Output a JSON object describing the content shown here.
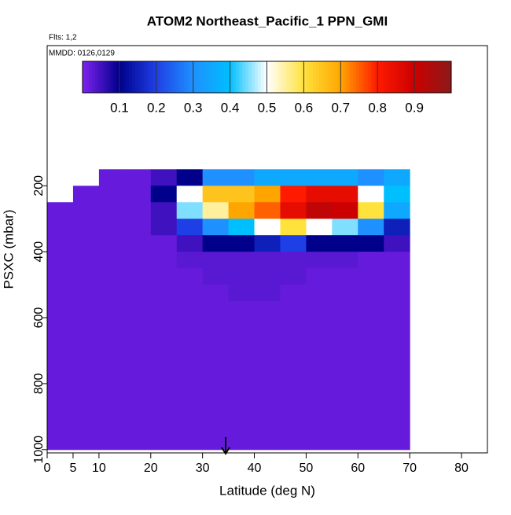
{
  "chart_data": {
    "type": "heatmap",
    "title": "ATOM2 Northeast_Pacific_1 PPN_GMI",
    "flights": "Flts: 1,2",
    "dates": "MMDD: 0126,0129",
    "xlabel": "Latitude (deg N)",
    "ylabel": "PSXC (mbar)",
    "x_edges": [
      0,
      5,
      10,
      15,
      20,
      25,
      30,
      35,
      40,
      45,
      50,
      55,
      60,
      65,
      70,
      75
    ],
    "y_edges": [
      150,
      200,
      250,
      300,
      350,
      400,
      450,
      500,
      550,
      600,
      650,
      700,
      750,
      800,
      850,
      900,
      950,
      1000
    ],
    "values": [
      [
        null,
        null,
        0.02,
        0.02,
        0.05,
        0.1,
        0.3,
        0.3,
        0.35,
        0.35,
        0.35,
        0.35,
        0.3,
        0.35,
        null
      ],
      [
        null,
        0.02,
        0.02,
        0.02,
        0.1,
        0.5,
        0.65,
        0.65,
        0.7,
        0.8,
        0.85,
        0.85,
        0.5,
        0.4,
        null
      ],
      [
        0.02,
        0.02,
        0.02,
        0.02,
        0.05,
        0.45,
        0.55,
        0.7,
        0.75,
        0.85,
        0.92,
        0.9,
        0.6,
        0.35,
        null
      ],
      [
        0.02,
        0.02,
        0.02,
        0.02,
        0.05,
        0.2,
        0.3,
        0.4,
        0.5,
        0.6,
        0.5,
        0.45,
        0.3,
        0.15,
        null
      ],
      [
        0.02,
        0.02,
        0.02,
        0.02,
        0.02,
        0.05,
        0.1,
        0.1,
        0.15,
        0.2,
        0.1,
        0.1,
        0.1,
        0.05,
        null
      ],
      [
        0.02,
        0.02,
        0.02,
        0.02,
        0.02,
        0.03,
        0.03,
        0.03,
        0.03,
        0.03,
        0.03,
        0.03,
        0.02,
        0.02,
        null
      ],
      [
        0.02,
        0.02,
        0.02,
        0.02,
        0.02,
        0.02,
        0.03,
        0.03,
        0.03,
        0.03,
        0.02,
        0.02,
        0.02,
        0.02,
        null
      ],
      [
        0.02,
        0.02,
        0.02,
        0.02,
        0.02,
        0.02,
        0.02,
        0.03,
        0.03,
        0.02,
        0.02,
        0.02,
        0.02,
        0.02,
        null
      ],
      [
        0.02,
        0.02,
        0.02,
        0.02,
        0.02,
        0.02,
        0.02,
        0.02,
        0.02,
        0.02,
        0.02,
        0.02,
        0.02,
        0.02,
        null
      ],
      [
        0.02,
        0.02,
        0.02,
        0.02,
        0.02,
        0.02,
        0.02,
        0.02,
        0.02,
        0.02,
        0.02,
        0.02,
        0.02,
        0.02,
        null
      ],
      [
        0.02,
        0.02,
        0.02,
        0.02,
        0.02,
        0.02,
        0.02,
        0.02,
        0.02,
        0.02,
        0.02,
        0.02,
        0.02,
        0.02,
        null
      ],
      [
        0.02,
        0.02,
        0.02,
        0.02,
        0.02,
        0.02,
        0.02,
        0.02,
        0.02,
        0.02,
        0.02,
        0.02,
        0.02,
        0.02,
        null
      ],
      [
        0.02,
        0.02,
        0.02,
        0.02,
        0.02,
        0.02,
        0.02,
        0.02,
        0.02,
        0.02,
        0.02,
        0.02,
        0.02,
        0.02,
        null
      ],
      [
        0.02,
        0.02,
        0.02,
        0.02,
        0.02,
        0.02,
        0.02,
        0.02,
        0.02,
        0.02,
        0.02,
        0.02,
        0.02,
        0.02,
        null
      ],
      [
        0.02,
        0.02,
        0.02,
        0.02,
        0.02,
        0.02,
        0.02,
        0.02,
        0.02,
        0.02,
        0.02,
        0.02,
        0.02,
        0.02,
        null
      ],
      [
        0.02,
        0.02,
        0.02,
        0.02,
        0.02,
        0.02,
        0.02,
        0.02,
        0.02,
        0.02,
        0.02,
        0.02,
        0.02,
        0.02,
        null
      ],
      [
        0.02,
        0.02,
        0.02,
        0.02,
        0.02,
        0.02,
        0.02,
        0.02,
        0.02,
        0.02,
        0.02,
        0.02,
        0.02,
        0.02,
        null
      ]
    ],
    "xlim": [
      0,
      85
    ],
    "xticks": [
      0,
      5,
      10,
      20,
      30,
      40,
      50,
      60,
      70,
      80
    ],
    "ylim": [
      1010,
      -225
    ],
    "yticks": [
      200,
      400,
      600,
      800,
      1000
    ],
    "colorbar_lim": [
      0,
      1
    ],
    "colorbar_ticks": [
      0.1,
      0.2,
      0.3,
      0.4,
      0.5,
      0.6,
      0.7,
      0.8,
      0.9
    ],
    "colorscale": [
      [
        0,
        "#7f22f0"
      ],
      [
        0.1,
        "#00008b"
      ],
      [
        0.2,
        "#1f3fe6"
      ],
      [
        0.3,
        "#1e90ff"
      ],
      [
        0.4,
        "#00bfff"
      ],
      [
        0.5,
        "#ffffff"
      ],
      [
        0.6,
        "#ffe23c"
      ],
      [
        0.7,
        "#ffa500"
      ],
      [
        0.8,
        "#ff1a00"
      ],
      [
        0.9,
        "#cc0000"
      ],
      [
        1,
        "#8b1a1a"
      ]
    ]
  }
}
